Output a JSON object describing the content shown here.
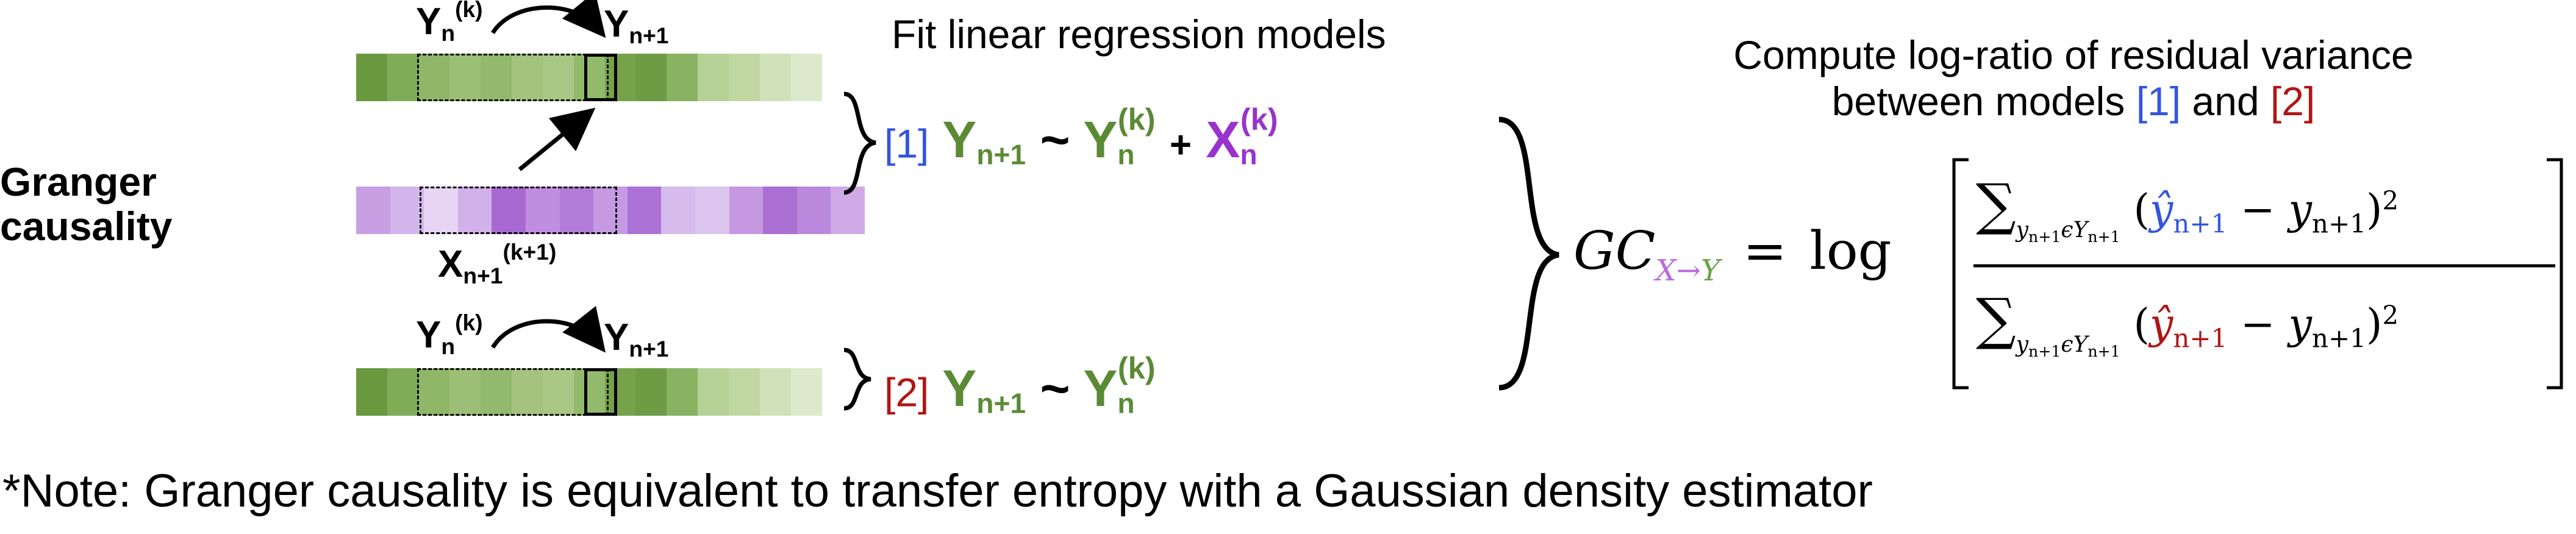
{
  "side_label": [
    "Granger",
    "causality"
  ],
  "fit_title": "Fit linear regression models",
  "variance_title": [
    "Compute log-ratio of residual variance",
    "between models [1] and [2]"
  ],
  "model1": {
    "tag": "[1]",
    "lhs": "Y",
    "lhs_sub": "n+1",
    "op": "~",
    "y": "Y",
    "y_sub": "n",
    "y_sup": "(k)",
    "plus": "+",
    "x": "X",
    "x_sub": "n",
    "x_sup": "(k)"
  },
  "model2": {
    "tag": "[2]",
    "lhs": "Y",
    "lhs_sub": "n+1",
    "op": "~",
    "y": "Y",
    "y_sub": "n",
    "y_sup": "(k)"
  },
  "strip_labels": {
    "y_hist": {
      "base": "Y",
      "sub": "n",
      "sup": "(k)"
    },
    "y_next": {
      "base": "Y",
      "sub": "n+1"
    },
    "x_hist": {
      "base": "X",
      "sub": "n+1",
      "sup": "(k+1)"
    }
  },
  "formula": {
    "gc": "GC",
    "gc_sub_x": "X",
    "gc_sub_arrow": "→",
    "gc_sub_y": "Y",
    "equals": "=",
    "log": "log",
    "sum": "∑",
    "sum_sub": "y",
    "sum_sub_idx": "n+1",
    "sum_sub_in": "ϵ",
    "sum_sub_set": "Y",
    "sum_sub_set_idx": "n+1",
    "yhat": "ŷ",
    "yhat_idx": "n+1",
    "minus": "−",
    "y": "y",
    "y_idx": "n+1",
    "square": "2",
    "lparen": "(",
    "rparen": ")"
  },
  "note": "*Note: Granger causality is equivalent to transfer entropy with a Gaussian density estimator",
  "colors": {
    "green_text": "#5b8a35",
    "purple_text": "#9933cc",
    "blue": "#3355dd",
    "red": "#b01515",
    "y_strip": [
      "#69983f",
      "#80ac58",
      "#8fb767",
      "#9cbf76",
      "#92b96c",
      "#a3c37f",
      "#a9c886",
      "#92ba6b",
      "#77a24c",
      "#6e9c45",
      "#89b262",
      "#b5d195",
      "#c0d7a2",
      "#cfe1b9",
      "#dde9cc"
    ],
    "x_strip": [
      "#c89fe3",
      "#d5b6ec",
      "#e7d5f3",
      "#d2b1ea",
      "#a869d2",
      "#c08ee0",
      "#b37bd8",
      "#c59ae2",
      "#ad72d5",
      "#d7bbed",
      "#dcc5ef",
      "#c698e1",
      "#ac6fd4",
      "#ba88dc",
      "#cfaae6"
    ]
  }
}
